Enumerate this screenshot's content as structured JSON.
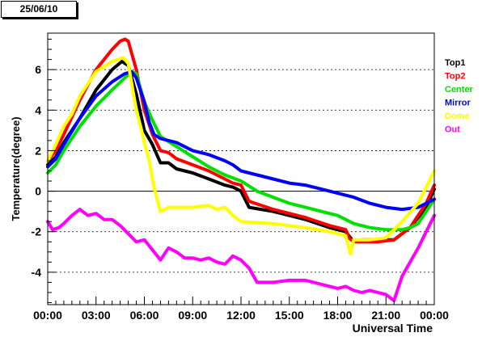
{
  "date_label": "25/06/10",
  "chart_data": {
    "type": "line",
    "title": "",
    "xlabel": "Universal Time",
    "ylabel": "Temperature(degree)",
    "x_ticks": [
      "00:00",
      "03:00",
      "06:00",
      "09:00",
      "12:00",
      "15:00",
      "18:00",
      "21:00",
      "00:00"
    ],
    "x_hours": [
      0,
      3,
      6,
      9,
      12,
      15,
      18,
      21,
      24
    ],
    "xlim": [
      0,
      24
    ],
    "y_ticks": [
      -4,
      -2,
      0,
      2,
      4,
      6
    ],
    "ylim": [
      -5.6,
      7.8
    ],
    "grid": "horizontal dotted",
    "legend_position": "right",
    "series": [
      {
        "name": "Top1",
        "color": "#000000",
        "hours": [
          0,
          0.5,
          1,
          2,
          3,
          4,
          4.6,
          5,
          5.5,
          6,
          6.5,
          7,
          7.5,
          8,
          9,
          10,
          11,
          11.5,
          12,
          12.5,
          14,
          16,
          17.5,
          18.5,
          18.8,
          19,
          19.5,
          20.5,
          21.5,
          22.5,
          23.5,
          24
        ],
        "values": [
          1.3,
          1.7,
          2.4,
          3.6,
          5.0,
          6.0,
          6.4,
          6.2,
          4.8,
          3.0,
          2.3,
          1.4,
          1.4,
          1.1,
          0.9,
          0.6,
          0.3,
          0.2,
          0.0,
          -0.8,
          -1.0,
          -1.4,
          -1.8,
          -2.0,
          -2.3,
          -2.5,
          -2.4,
          -2.4,
          -2.4,
          -1.8,
          -0.8,
          0.1
        ]
      },
      {
        "name": "Top2",
        "color": "#ff0000",
        "hours": [
          0,
          0.5,
          1,
          2,
          3,
          4,
          4.5,
          4.8,
          5.0,
          5.5,
          6,
          6.5,
          7,
          7.5,
          8,
          9,
          10,
          11,
          11.5,
          12,
          12.5,
          14,
          16,
          17.5,
          18.5,
          18.7,
          19,
          19.5,
          20.5,
          21.5,
          22.5,
          23.5,
          24
        ],
        "values": [
          1.5,
          2.0,
          2.8,
          4.5,
          6.0,
          7.0,
          7.4,
          7.5,
          7.4,
          6.0,
          4.0,
          2.8,
          2.0,
          1.9,
          1.6,
          1.3,
          1.0,
          0.6,
          0.4,
          0.3,
          -0.5,
          -0.9,
          -1.3,
          -1.7,
          -1.9,
          -2.3,
          -2.5,
          -2.5,
          -2.5,
          -2.4,
          -1.8,
          -0.6,
          0.3
        ]
      },
      {
        "name": "Center",
        "color": "#00e000",
        "hours": [
          0,
          0.5,
          1,
          2,
          3,
          4,
          4.8,
          5.2,
          5.5,
          6,
          6.5,
          7,
          8,
          9,
          10,
          11,
          12,
          13,
          14,
          15,
          16,
          17,
          18,
          18.5,
          19,
          20,
          21,
          22,
          22.5,
          23,
          23.5,
          24
        ],
        "values": [
          0.9,
          1.3,
          2.0,
          3.2,
          4.2,
          5.0,
          5.6,
          5.9,
          5.8,
          4.4,
          3.5,
          2.7,
          2.2,
          1.7,
          1.2,
          0.8,
          0.5,
          0.0,
          -0.3,
          -0.6,
          -0.8,
          -1.0,
          -1.2,
          -1.4,
          -1.6,
          -1.8,
          -1.9,
          -1.9,
          -1.8,
          -1.6,
          -1.0,
          -0.4
        ]
      },
      {
        "name": "Mirror",
        "color": "#0000ff",
        "hours": [
          0,
          0.5,
          1,
          2,
          3,
          4,
          4.8,
          5.2,
          5.5,
          6,
          6.3,
          6.6,
          7,
          8,
          9,
          10,
          11,
          11.5,
          12,
          13,
          14,
          15,
          16,
          17,
          18,
          19,
          20,
          21,
          22,
          23,
          23.5,
          24
        ],
        "values": [
          1.2,
          1.6,
          2.3,
          3.6,
          4.7,
          5.4,
          5.8,
          5.9,
          5.6,
          4.4,
          3.4,
          2.8,
          2.6,
          2.4,
          2.0,
          1.8,
          1.5,
          1.3,
          1.0,
          0.8,
          0.6,
          0.4,
          0.3,
          0.1,
          -0.1,
          -0.3,
          -0.6,
          -0.8,
          -0.9,
          -0.8,
          -0.6,
          -0.4
        ]
      },
      {
        "name": "Dome",
        "color": "#ffff00",
        "hours": [
          0,
          0.5,
          1,
          1.5,
          2,
          3,
          4,
          4.7,
          5.0,
          5.5,
          5.8,
          6.0,
          6.3,
          6.6,
          7,
          7.5,
          8,
          9,
          10,
          10.5,
          11,
          11.5,
          12,
          14,
          16,
          17.5,
          18.5,
          18.8,
          19.0,
          20,
          21,
          22,
          23,
          23.5,
          24
        ],
        "values": [
          1.5,
          2.3,
          3.2,
          3.8,
          4.7,
          5.9,
          6.4,
          6.6,
          6.3,
          4.0,
          3.1,
          2.4,
          1.5,
          0.2,
          -1.0,
          -0.8,
          -0.8,
          -0.8,
          -0.7,
          -0.9,
          -0.8,
          -1.2,
          -1.5,
          -1.6,
          -1.8,
          -2.0,
          -2.2,
          -3.1,
          -2.4,
          -2.4,
          -2.3,
          -1.5,
          -0.6,
          0.2,
          1.0
        ]
      },
      {
        "name": "Out",
        "color": "#ff00ff",
        "hours": [
          0,
          0.3,
          0.7,
          1,
          1.5,
          2,
          2.5,
          3,
          3.5,
          4,
          4.5,
          5,
          5.5,
          6,
          6.5,
          7,
          7.5,
          8,
          8.5,
          9,
          9.5,
          10,
          10.5,
          11,
          11.5,
          12,
          12.5,
          13,
          14,
          15,
          16,
          17,
          18,
          18.5,
          19,
          19.5,
          20,
          20.5,
          21,
          21.5,
          22,
          23,
          24
        ],
        "values": [
          -1.5,
          -1.9,
          -1.8,
          -1.6,
          -1.2,
          -0.9,
          -1.2,
          -1.1,
          -1.4,
          -1.4,
          -1.7,
          -2.1,
          -2.5,
          -2.4,
          -2.9,
          -3.4,
          -2.8,
          -3.0,
          -3.3,
          -3.3,
          -3.4,
          -3.3,
          -3.5,
          -3.6,
          -3.2,
          -3.4,
          -3.8,
          -4.5,
          -4.5,
          -4.4,
          -4.4,
          -4.6,
          -4.8,
          -4.7,
          -4.9,
          -5.0,
          -4.9,
          -5.0,
          -5.1,
          -5.4,
          -4.2,
          -2.8,
          -1.2
        ]
      }
    ]
  }
}
